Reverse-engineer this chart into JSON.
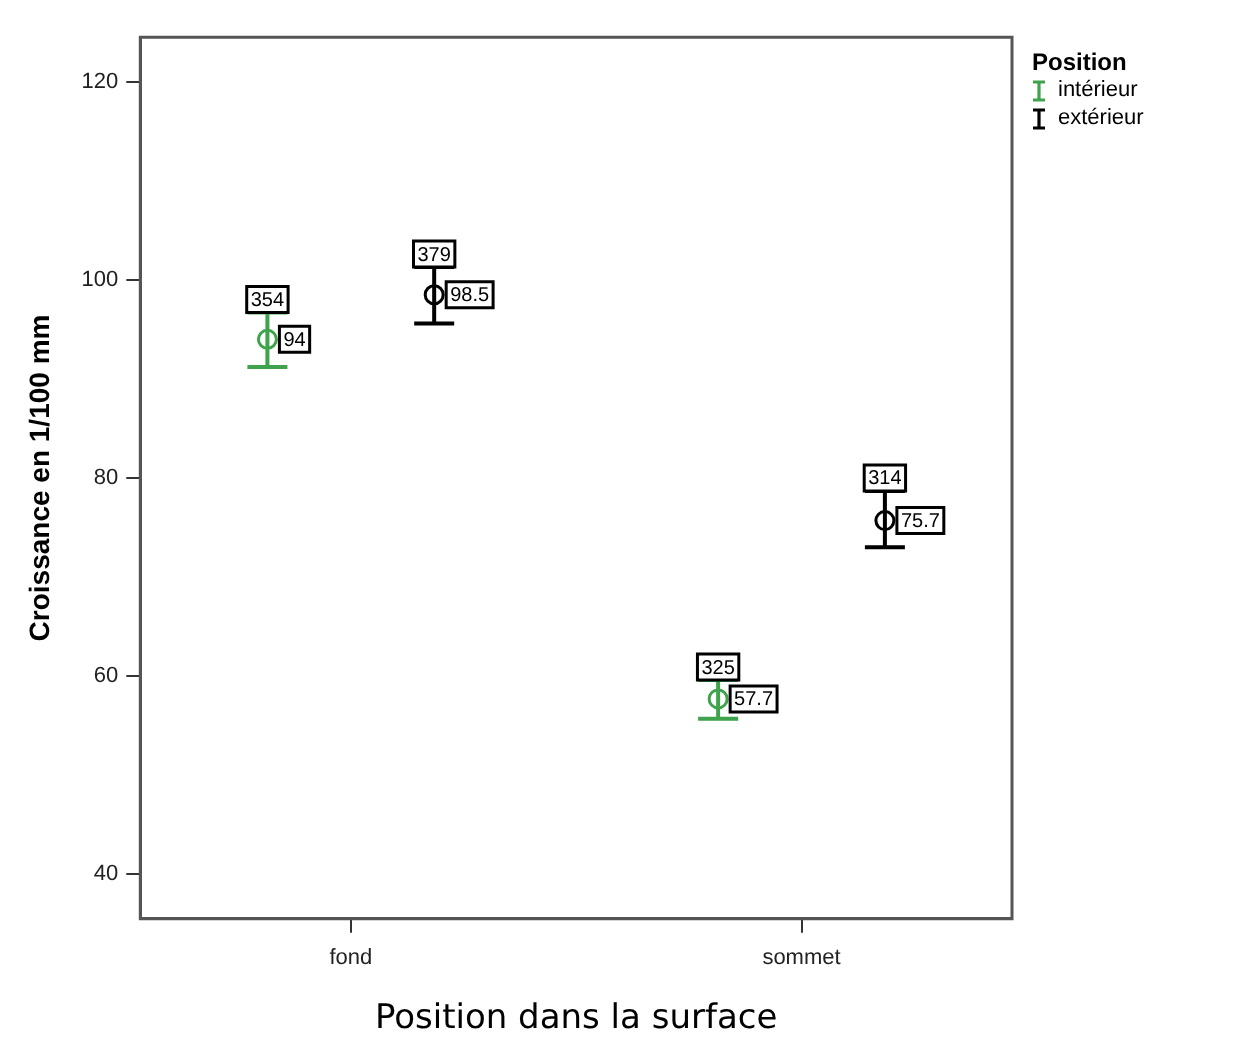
{
  "chart_data": {
    "type": "scatter",
    "xlabel": "Position dans la surface",
    "ylabel": "Croissance en 1/100 mm",
    "legend_title": "Position",
    "categories": [
      "fond",
      "sommet"
    ],
    "series": [
      {
        "name": "intérieur",
        "color": "#3fa34d",
        "values": [
          94,
          57.7
        ],
        "errors": [
          [
            91.2,
            96.7
          ],
          [
            55.7,
            59.6
          ]
        ]
      },
      {
        "name": "extérieur",
        "color": "#000000",
        "values": [
          98.5,
          75.7
        ],
        "errors": [
          [
            95.6,
            101.3
          ],
          [
            73.0,
            78.7
          ]
        ]
      }
    ],
    "ylim": [
      35.5,
      124.5
    ],
    "yticks": [
      40,
      60,
      80,
      100,
      120
    ],
    "grid": false,
    "legend": "top right",
    "marker": "circle",
    "data_labels": true,
    "annotations": [
      "354",
      "379",
      "325",
      "314"
    ]
  }
}
